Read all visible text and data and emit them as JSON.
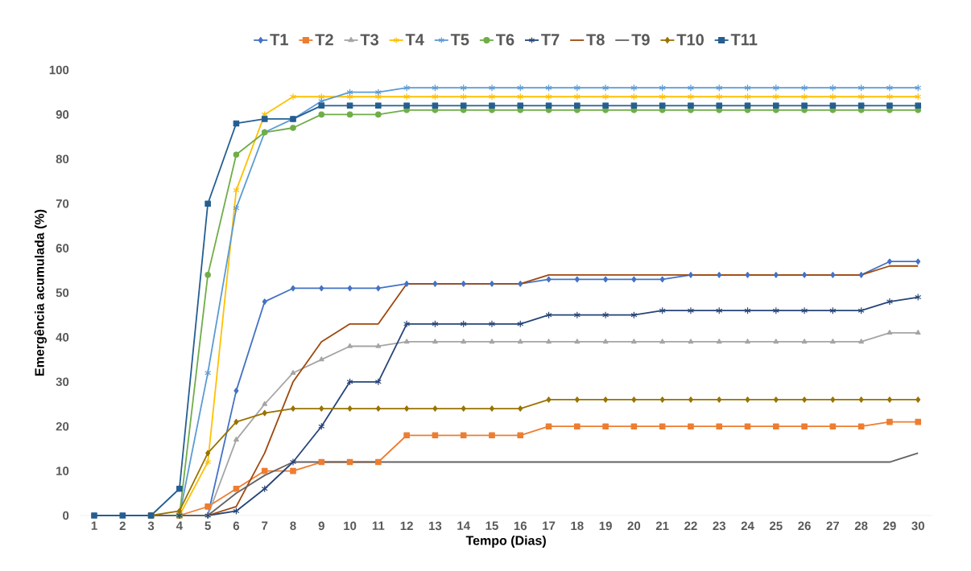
{
  "chart_data": {
    "type": "line",
    "xlabel": "Tempo (Dias)",
    "ylabel": "Emergência acumulada (%)",
    "categories": [
      "1",
      "2",
      "3",
      "4",
      "5",
      "6",
      "7",
      "8",
      "9",
      "10",
      "11",
      "12",
      "13",
      "14",
      "15",
      "16",
      "17",
      "18",
      "19",
      "20",
      "21",
      "22",
      "23",
      "24",
      "25",
      "26",
      "27",
      "28",
      "29",
      "30"
    ],
    "ylim": [
      0,
      100
    ],
    "yticks": [
      0,
      10,
      20,
      30,
      40,
      50,
      60,
      70,
      80,
      90,
      100
    ],
    "legend": "top",
    "series": [
      {
        "name": "T1",
        "color": "#4472c4",
        "marker": "diamond",
        "values": [
          null,
          null,
          null,
          0,
          0,
          28,
          48,
          51,
          51,
          51,
          51,
          52,
          52,
          52,
          52,
          52,
          53,
          53,
          53,
          53,
          53,
          54,
          54,
          54,
          54,
          54,
          54,
          54,
          57,
          57
        ]
      },
      {
        "name": "T2",
        "color": "#ed7d31",
        "marker": "square",
        "values": [
          null,
          null,
          0,
          0,
          2,
          6,
          10,
          10,
          12,
          12,
          12,
          18,
          18,
          18,
          18,
          18,
          20,
          20,
          20,
          20,
          20,
          20,
          20,
          20,
          20,
          20,
          20,
          20,
          21,
          21
        ]
      },
      {
        "name": "T3",
        "color": "#a5a5a5",
        "marker": "triangle",
        "values": [
          null,
          null,
          0,
          0,
          0,
          17,
          25,
          32,
          35,
          38,
          38,
          39,
          39,
          39,
          39,
          39,
          39,
          39,
          39,
          39,
          39,
          39,
          39,
          39,
          39,
          39,
          39,
          39,
          41,
          41
        ]
      },
      {
        "name": "T4",
        "color": "#ffc000",
        "marker": "cross",
        "values": [
          null,
          null,
          0,
          0,
          12,
          73,
          90,
          94,
          94,
          94,
          94,
          94,
          94,
          94,
          94,
          94,
          94,
          94,
          94,
          94,
          94,
          94,
          94,
          94,
          94,
          94,
          94,
          94,
          94,
          94
        ]
      },
      {
        "name": "T5",
        "color": "#5b9bd5",
        "marker": "cross",
        "values": [
          null,
          null,
          0,
          0,
          32,
          69,
          86,
          89,
          93,
          95,
          95,
          96,
          96,
          96,
          96,
          96,
          96,
          96,
          96,
          96,
          96,
          96,
          96,
          96,
          96,
          96,
          96,
          96,
          96,
          96
        ]
      },
      {
        "name": "T6",
        "color": "#70ad47",
        "marker": "circle",
        "values": [
          null,
          null,
          0,
          0,
          54,
          81,
          86,
          87,
          90,
          90,
          90,
          91,
          91,
          91,
          91,
          91,
          91,
          91,
          91,
          91,
          91,
          91,
          91,
          91,
          91,
          91,
          91,
          91,
          91,
          91
        ]
      },
      {
        "name": "T7",
        "color": "#264478",
        "marker": "cross",
        "values": [
          null,
          null,
          0,
          0,
          0,
          1,
          6,
          12,
          20,
          30,
          30,
          43,
          43,
          43,
          43,
          43,
          45,
          45,
          45,
          45,
          46,
          46,
          46,
          46,
          46,
          46,
          46,
          46,
          48,
          49
        ]
      },
      {
        "name": "T8",
        "color": "#9e480e",
        "marker": "none",
        "values": [
          null,
          null,
          0,
          0,
          0,
          2,
          14,
          30,
          39,
          43,
          43,
          52,
          52,
          52,
          52,
          52,
          54,
          54,
          54,
          54,
          54,
          54,
          54,
          54,
          54,
          54,
          54,
          54,
          56,
          56
        ]
      },
      {
        "name": "T9",
        "color": "#636363",
        "marker": "none",
        "values": [
          null,
          null,
          0,
          0,
          0,
          5,
          9,
          12,
          12,
          12,
          12,
          12,
          12,
          12,
          12,
          12,
          12,
          12,
          12,
          12,
          12,
          12,
          12,
          12,
          12,
          12,
          12,
          12,
          12,
          14
        ]
      },
      {
        "name": "T10",
        "color": "#997300",
        "marker": "diamond",
        "values": [
          null,
          null,
          0,
          1,
          14,
          21,
          23,
          24,
          24,
          24,
          24,
          24,
          24,
          24,
          24,
          24,
          26,
          26,
          26,
          26,
          26,
          26,
          26,
          26,
          26,
          26,
          26,
          26,
          26,
          26
        ]
      },
      {
        "name": "T11",
        "color": "#255e91",
        "marker": "square",
        "values": [
          0,
          0,
          0,
          6,
          70,
          88,
          89,
          89,
          92,
          92,
          92,
          92,
          92,
          92,
          92,
          92,
          92,
          92,
          92,
          92,
          92,
          92,
          92,
          92,
          92,
          92,
          92,
          92,
          92,
          92
        ]
      }
    ]
  }
}
